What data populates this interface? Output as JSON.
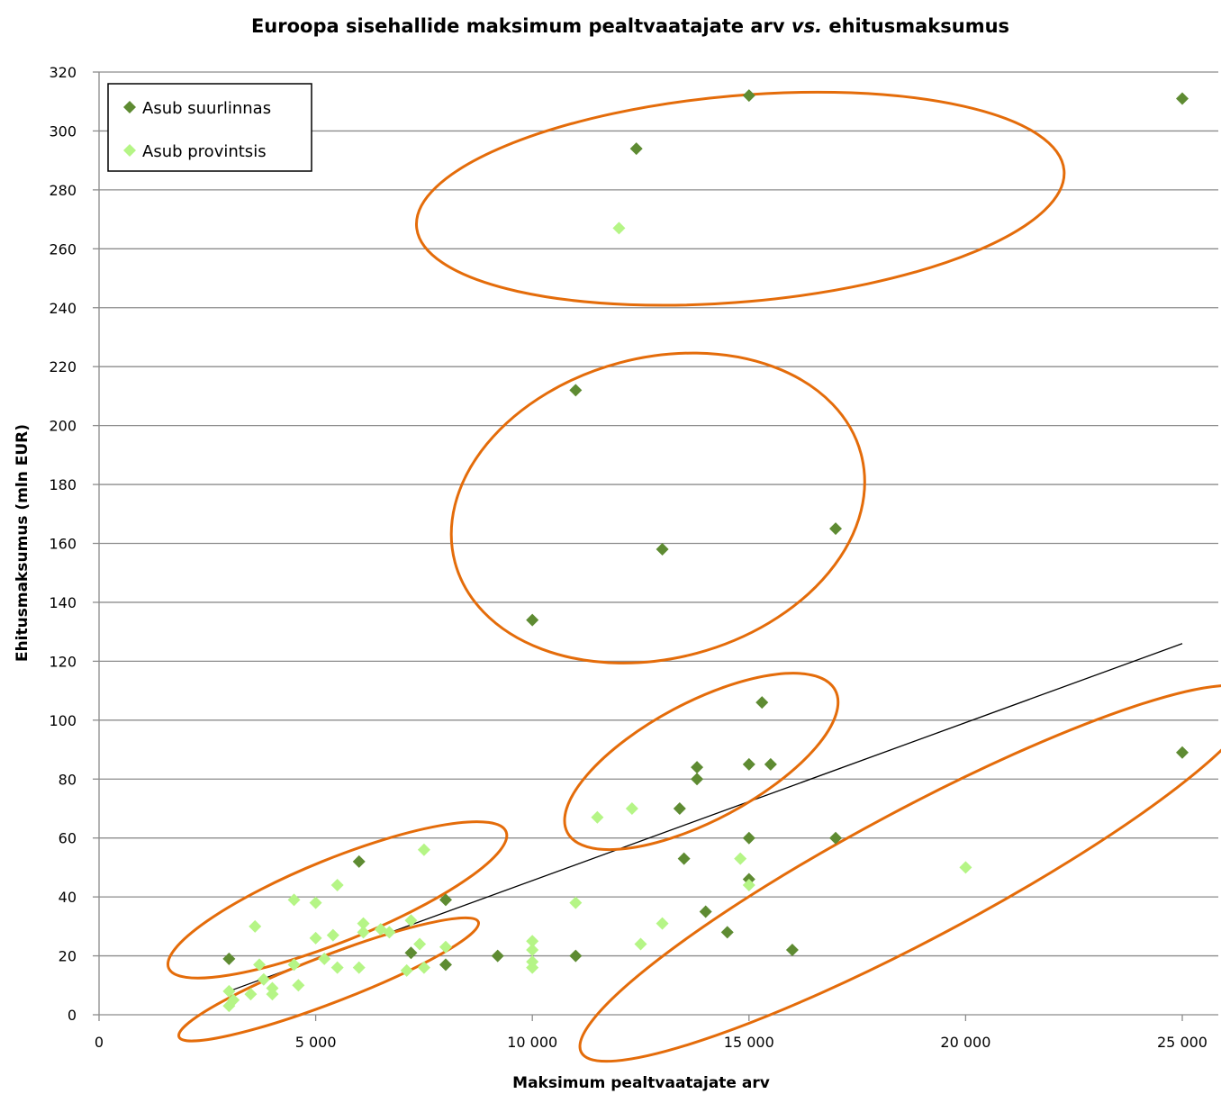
{
  "chart_data": {
    "type": "scatter",
    "title_main": "Euroopa sisehallide maksimum pealtvaatajate arv ",
    "title_italic": "vs.",
    "title_end": " ehitusmaksumus",
    "xlabel": "Maksimum pealtvaatajate arv",
    "ylabel": "Ehitusmaksumus (mln EUR)",
    "xlim": [
      0,
      25000
    ],
    "ylim": [
      0,
      320
    ],
    "xticks": [
      0,
      5000,
      10000,
      15000,
      20000,
      25000
    ],
    "xtick_labels": [
      "0",
      "5 000",
      "10 000",
      "15 000",
      "20 000",
      "25 000"
    ],
    "yticks": [
      0,
      20,
      40,
      60,
      80,
      100,
      120,
      140,
      160,
      180,
      200,
      220,
      240,
      260,
      280,
      300,
      320
    ],
    "ytick_labels": [
      "0",
      "20",
      "40",
      "60",
      "80",
      "100",
      "120",
      "140",
      "160",
      "180",
      "200",
      "220",
      "240",
      "260",
      "280",
      "300",
      "320"
    ],
    "grid": "horizontal",
    "legend_position": "top-left",
    "series": [
      {
        "name": "Asub suurlinnas",
        "color": "#5e8b32",
        "points": [
          [
            25000,
            311
          ],
          [
            15000,
            312
          ],
          [
            12400,
            294
          ],
          [
            11000,
            212
          ],
          [
            13000,
            158
          ],
          [
            17000,
            165
          ],
          [
            10000,
            134
          ],
          [
            15300,
            106
          ],
          [
            13800,
            84
          ],
          [
            15000,
            85
          ],
          [
            15500,
            85
          ],
          [
            13800,
            80
          ],
          [
            13400,
            70
          ],
          [
            15000,
            60
          ],
          [
            17000,
            60
          ],
          [
            13500,
            53
          ],
          [
            15000,
            46
          ],
          [
            14000,
            35
          ],
          [
            14500,
            28
          ],
          [
            16000,
            22
          ],
          [
            25000,
            89
          ],
          [
            6000,
            52
          ],
          [
            8000,
            39
          ],
          [
            7200,
            21
          ],
          [
            8000,
            17
          ],
          [
            3000,
            19
          ],
          [
            9200,
            20
          ],
          [
            11000,
            20
          ]
        ]
      },
      {
        "name": "Asub provintsis",
        "color": "#b5f586",
        "points": [
          [
            12000,
            267
          ],
          [
            11500,
            67
          ],
          [
            12300,
            70
          ],
          [
            14800,
            53
          ],
          [
            15000,
            44
          ],
          [
            20000,
            50
          ],
          [
            13000,
            31
          ],
          [
            12500,
            24
          ],
          [
            11000,
            38
          ],
          [
            10000,
            25
          ],
          [
            10000,
            22
          ],
          [
            10000,
            18
          ],
          [
            10000,
            16
          ],
          [
            7500,
            56
          ],
          [
            7200,
            32
          ],
          [
            8000,
            23
          ],
          [
            7100,
            15
          ],
          [
            7500,
            16
          ],
          [
            7400,
            24
          ],
          [
            5500,
            44
          ],
          [
            5000,
            38
          ],
          [
            4500,
            39
          ],
          [
            6100,
            31
          ],
          [
            6100,
            28
          ],
          [
            6500,
            29
          ],
          [
            6700,
            28
          ],
          [
            5000,
            26
          ],
          [
            5400,
            27
          ],
          [
            5200,
            19
          ],
          [
            5500,
            16
          ],
          [
            6000,
            16
          ],
          [
            4500,
            17
          ],
          [
            4600,
            10
          ],
          [
            3600,
            30
          ],
          [
            3700,
            17
          ],
          [
            3800,
            12
          ],
          [
            4000,
            9
          ],
          [
            4000,
            7
          ],
          [
            3500,
            7
          ],
          [
            3000,
            8
          ],
          [
            3100,
            5
          ],
          [
            3000,
            3
          ]
        ]
      }
    ],
    "trendline": {
      "from": [
        3000,
        8
      ],
      "to": [
        25000,
        126
      ],
      "color": "#000000"
    },
    "annotation_ellipses": [
      {
        "color": "#e46c0a",
        "center": [
          14800,
          277
        ],
        "rx_units": 7500,
        "ry_units": 35,
        "angle_deg": -5
      },
      {
        "color": "#e46c0a",
        "center": [
          12900,
          172
        ],
        "rx_units": 4850,
        "ry_units": 51,
        "angle_deg": -15
      },
      {
        "color": "#e46c0a",
        "center": [
          13900,
          86
        ],
        "rx_units": 3500,
        "ry_units": 20,
        "angle_deg": -28
      },
      {
        "color": "#e46c0a",
        "center": [
          5500,
          39
        ],
        "rx_units": 4200,
        "ry_units": 14,
        "angle_deg": -22
      },
      {
        "color": "#e46c0a",
        "center": [
          5300,
          12
        ],
        "rx_units": 3700,
        "ry_units": 8,
        "angle_deg": -21
      },
      {
        "color": "#e46c0a",
        "center": [
          18900,
          48
        ],
        "rx_units": 8800,
        "ry_units": 22,
        "angle_deg": -28
      }
    ]
  }
}
